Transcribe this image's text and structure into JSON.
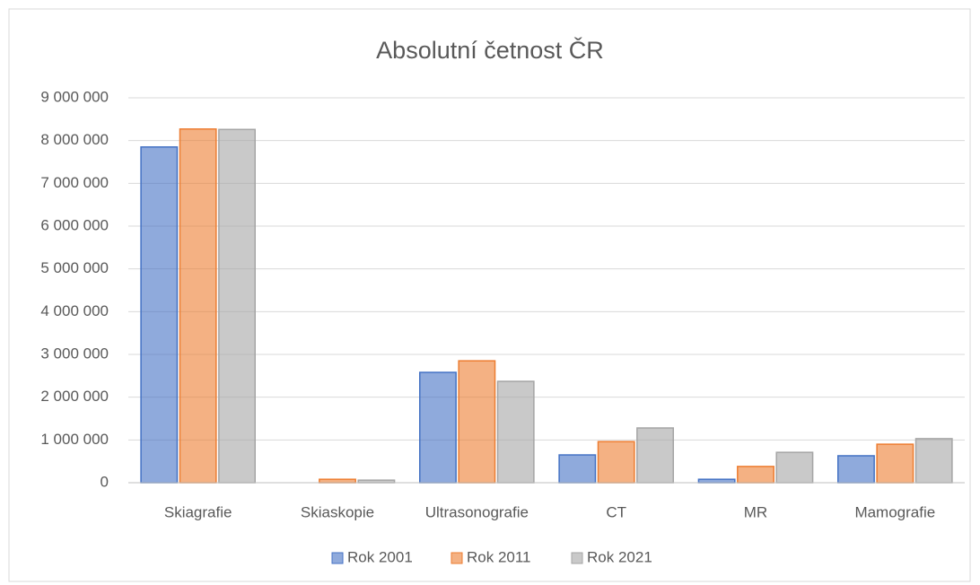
{
  "chart_data": {
    "type": "bar",
    "title": "Absolutní četnost ČR",
    "categories": [
      "Skiagrafie",
      "Skiaskopie",
      "Ultrasonografie",
      "CT",
      "MR",
      "Mamografie"
    ],
    "series": [
      {
        "name": "Rok 2001",
        "color": "#4472c4",
        "values": [
          7850000,
          0,
          2580000,
          650000,
          80000,
          630000
        ]
      },
      {
        "name": "Rok 2011",
        "color": "#ed7d31",
        "values": [
          8270000,
          80000,
          2850000,
          960000,
          380000,
          900000
        ]
      },
      {
        "name": "Rok 2021",
        "color": "#a5a5a5",
        "values": [
          8260000,
          60000,
          2370000,
          1280000,
          710000,
          1030000
        ]
      }
    ],
    "ylim": [
      0,
      9000000
    ],
    "yticks": [
      0,
      {
        "value": 1000000,
        "label": "1 000 000"
      },
      {
        "value": 2000000,
        "label": "2 000 000"
      },
      {
        "value": 3000000,
        "label": "3 000 000"
      },
      {
        "value": 4000000,
        "label": "4 000 000"
      },
      {
        "value": 5000000,
        "label": "5 000 000"
      },
      {
        "value": 6000000,
        "label": "6 000 000"
      },
      {
        "value": 7000000,
        "label": "7 000 000"
      },
      {
        "value": 8000000,
        "label": "8 000 000"
      },
      {
        "value": 9000000,
        "label": "9 000 000"
      }
    ],
    "grid": true,
    "legend": "bottom"
  }
}
